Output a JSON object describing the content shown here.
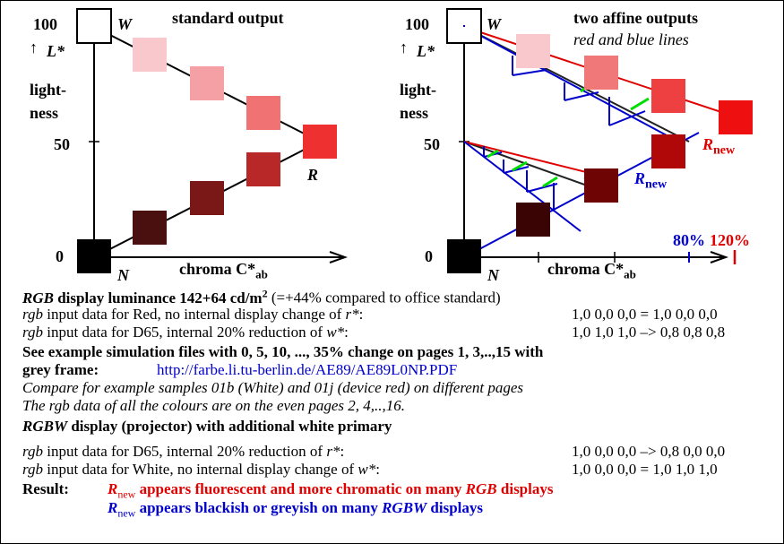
{
  "left_panel": {
    "title": "standard output",
    "y_top": "100",
    "y_mid": "50",
    "y_bottom": "0",
    "axis_var": "L*",
    "axis_word_1": "light-",
    "axis_word_2": "ness",
    "label_W": "W",
    "label_N": "N",
    "label_R": "R",
    "chroma_label": "chroma C*",
    "chroma_sub": "ab"
  },
  "right_panel": {
    "title": "two affine outputs",
    "subtitle": "red and blue lines",
    "y_top": "100",
    "y_mid": "50",
    "y_bottom": "0",
    "axis_var": "L*",
    "axis_word_1": "light-",
    "axis_word_2": "ness",
    "label_W": "W",
    "label_N": "N",
    "r_new_red": "R",
    "r_new_blue": "R",
    "new_sub": "new",
    "pct_80": "80%",
    "pct_120": "120%",
    "chroma_label": "chroma C*",
    "chroma_sub": "ab"
  },
  "text": {
    "line1_a": "RGB",
    "line1_b": " display luminance 142+64 cd/m",
    "line1_sup": "2",
    "line1_c": " (=+44% compared to office standard)",
    "line2_a": "rgb",
    "line2_b": " input data for Red, no internal display change of ",
    "line2_c": "r*",
    "line2_d": ":",
    "line2_val": "1,0 0,0 0,0  = 1,0 0,0 0,0",
    "line3_a": "rgb",
    "line3_b": " input data for D65, internal 20% reduction of ",
    "line3_c": "w*",
    "line3_d": ":",
    "line3_val": "1,0 1,0 1,0 –> 0,8 0,8 0,8",
    "line4": "See example simulation files with 0, 5, 10, ..., 35% change on pages 1, 3,..,15 with",
    "line5_a": "grey frame:",
    "line5_link": "http://farbe.li.tu-berlin.de/AE89/AE89L0NP.PDF",
    "line6": "Compare for example samples 01b (White) and 01j (device red) on different pages",
    "line7": "The rgb data of all the colours are on the even pages 2, 4,..,16.",
    "line8_a": "RGBW",
    "line8_b": " display (projector) with additional white primary",
    "line9_a": "rgb",
    "line9_b": " input data for D65, internal 20% reduction of ",
    "line9_c": "r*",
    "line9_d": ":",
    "line9_val": "1,0 0,0 0,0 –> 0,8 0,0 0,0",
    "line10_a": "rgb",
    "line10_b": " input data for White, no internal display change of ",
    "line10_c": "w*",
    "line10_d": ":",
    "line10_val": "1,0 0,0 0,0  = 1,0 1,0 1,0",
    "result_label": "Result:",
    "res1_R": "R",
    "res1_sub": "new",
    "res1_a": " appears fluorescent and more chromatic on many ",
    "res1_b": "RGB",
    "res1_c": " displays",
    "res2_R": "R",
    "res2_sub": "new",
    "res2_a": " appears blackish or greyish on many ",
    "res2_b": "RGBW",
    "res2_c": " displays"
  },
  "colors": {
    "red_line": "#e00000",
    "blue_line": "#0000cc",
    "green_tick": "#00dd00"
  }
}
